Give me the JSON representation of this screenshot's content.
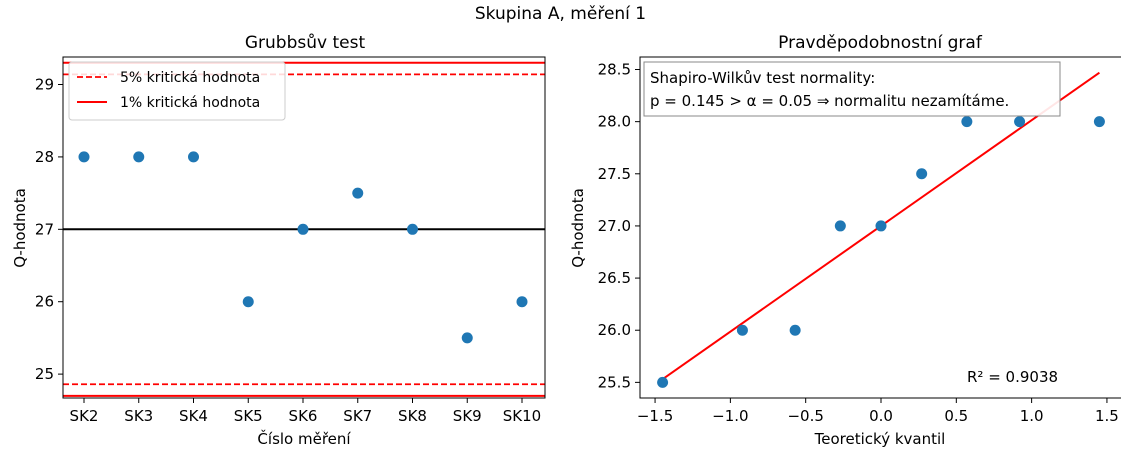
{
  "suptitle": "Skupina A, měření 1",
  "chart_data": [
    {
      "type": "scatter",
      "title": "Grubbsův test",
      "xlabel": "Číslo měření",
      "ylabel": "Q-hodnota",
      "categories": [
        "SK2",
        "SK3",
        "SK4",
        "SK5",
        "SK6",
        "SK7",
        "SK8",
        "SK9",
        "SK10"
      ],
      "values": [
        28.0,
        28.0,
        28.0,
        26.0,
        27.0,
        27.5,
        27.0,
        25.5,
        26.0
      ],
      "ylim": [
        24.67,
        29.38
      ],
      "yticks": [
        25,
        26,
        27,
        28,
        29
      ],
      "ytick_labels": [
        "25",
        "26",
        "27",
        "28",
        "29"
      ],
      "mean": 27.0,
      "lines_5pct": [
        24.86,
        29.14
      ],
      "lines_1pct": [
        24.7,
        29.3
      ],
      "legend": [
        {
          "label": "5% kritická hodnota",
          "style": "dashed",
          "color": "#ff0000"
        },
        {
          "label": "1% kritická hodnota",
          "style": "solid",
          "color": "#ff0000"
        }
      ],
      "legend_loc": "upper left",
      "point_color": "#1f77b4",
      "grid": false
    },
    {
      "type": "scatter",
      "title": "Pravděpodobnostní graf",
      "xlabel": "Teoretický kvantil",
      "ylabel": "Q-hodnota",
      "x": [
        -1.45,
        -0.92,
        -0.57,
        -0.27,
        0.0,
        0.27,
        0.57,
        0.92,
        1.45
      ],
      "y": [
        25.5,
        26.0,
        26.0,
        27.0,
        27.0,
        27.5,
        28.0,
        28.0,
        28.0
      ],
      "fit_line": {
        "x": [
          -1.45,
          1.45
        ],
        "y": [
          25.53,
          28.47
        ],
        "color": "#ff0000"
      },
      "xlim": [
        -1.6,
        1.6
      ],
      "ylim": [
        25.35,
        28.62
      ],
      "xticks": [
        -1.5,
        -1.0,
        -0.5,
        0.0,
        0.5,
        1.0,
        1.5
      ],
      "xtick_labels": [
        "−1.5",
        "−1.0",
        "−0.5",
        "0.0",
        "0.5",
        "1.0",
        "1.5"
      ],
      "yticks": [
        25.5,
        26.0,
        26.5,
        27.0,
        27.5,
        28.0,
        28.5
      ],
      "ytick_labels": [
        "25.5",
        "26.0",
        "26.5",
        "27.0",
        "27.5",
        "28.0",
        "28.5"
      ],
      "annotation_box": [
        "Shapiro-Wilkův test normality:",
        "p = 0.145 > α = 0.05 ⇒  normalitu nezamítáme."
      ],
      "r2_label": "R² = 0.9038",
      "point_color": "#1f77b4",
      "grid": false
    }
  ]
}
